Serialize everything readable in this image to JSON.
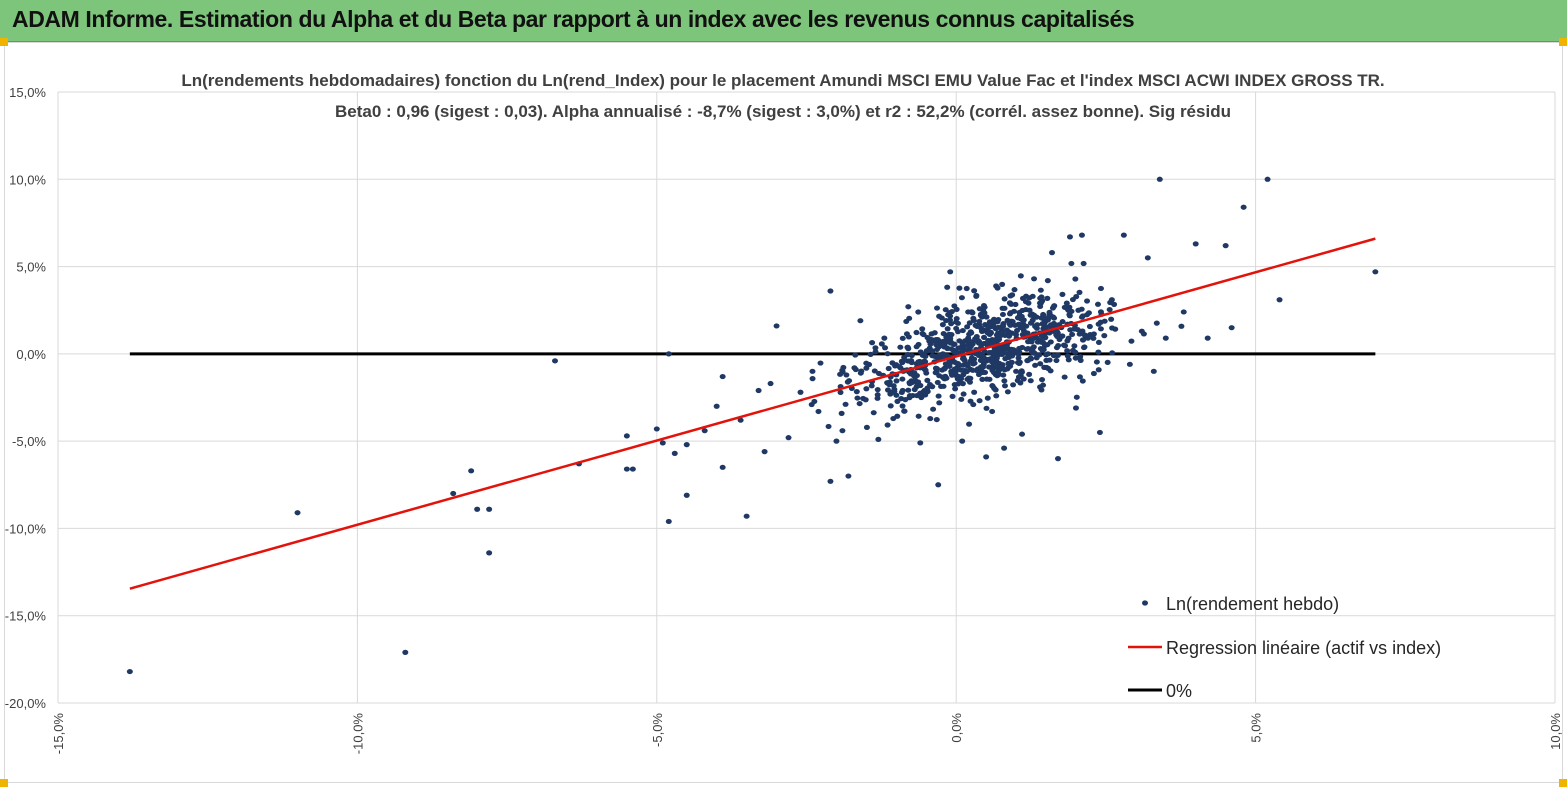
{
  "banner": {
    "title": "ADAM Informe. Estimation du Alpha et du Beta par rapport à un index avec les revenus connus capitalisés",
    "color": "#7dc57b"
  },
  "chart_data": {
    "type": "scatter",
    "title": "Ln(rendements hebdomadaires) fonction du Ln(rend_Index) pour le placement Amundi MSCI EMU Value Fac et l'index MSCI ACWI INDEX GROSS TR.",
    "subtitle": "Beta0 : 0,96 (sigest : 0,03). Alpha annualisé : -8,7% (sigest : 3,0%) et r2 : 52,2% (corrél. assez bonne). Sig résidu",
    "xlabel": "",
    "ylabel": "",
    "xlim": [
      -15,
      10
    ],
    "ylim": [
      -20,
      15
    ],
    "x_ticks": [
      "-15,0%",
      "-10,0%",
      "-5,0%",
      "0,0%",
      "5,0%",
      "10,0%"
    ],
    "y_ticks": [
      "15,0%",
      "10,0%",
      "5,0%",
      "0,0%",
      "-5,0%",
      "-10,0%",
      "-15,0%",
      "-20,0%"
    ],
    "grid": true,
    "legend_position": "bottom-right",
    "series": [
      {
        "name": "Ln(rendement hebdo)",
        "kind": "scatter",
        "color": "#1f3864",
        "points": [
          [
            -13.8,
            -18.2
          ],
          [
            -11.0,
            -9.1
          ],
          [
            -9.2,
            -17.1
          ],
          [
            -8.4,
            -8.0
          ],
          [
            -8.1,
            -6.7
          ],
          [
            -8.0,
            -8.9
          ],
          [
            -7.8,
            -8.9
          ],
          [
            -7.8,
            -11.4
          ],
          [
            -6.7,
            -0.4
          ],
          [
            -6.3,
            -6.3
          ],
          [
            -5.5,
            -4.7
          ],
          [
            -5.5,
            -6.6
          ],
          [
            -5.4,
            -6.6
          ],
          [
            -5.0,
            -4.3
          ],
          [
            -4.9,
            -5.1
          ],
          [
            -4.8,
            -9.6
          ],
          [
            -4.8,
            0.0
          ],
          [
            -4.7,
            -5.7
          ],
          [
            -4.5,
            -5.2
          ],
          [
            -4.5,
            -8.1
          ],
          [
            -4.2,
            -4.4
          ],
          [
            -4.0,
            -3.0
          ],
          [
            -3.9,
            -1.3
          ],
          [
            -3.9,
            -6.5
          ],
          [
            -3.6,
            -3.8
          ],
          [
            -3.5,
            -9.3
          ],
          [
            -3.3,
            -2.1
          ],
          [
            -3.2,
            -5.6
          ],
          [
            -3.1,
            -1.7
          ],
          [
            -3.0,
            1.6
          ],
          [
            -2.8,
            -4.8
          ],
          [
            -2.6,
            -2.2
          ],
          [
            -2.4,
            -1.0
          ],
          [
            -2.3,
            -3.3
          ],
          [
            -2.1,
            -7.3
          ],
          [
            -2.1,
            3.6
          ],
          [
            -2.0,
            -5.0
          ],
          [
            -1.9,
            -4.4
          ],
          [
            -1.8,
            -7.0
          ],
          [
            -1.7,
            -0.8
          ],
          [
            -1.6,
            1.9
          ],
          [
            -1.5,
            -2.0
          ],
          [
            -1.3,
            -4.9
          ],
          [
            -1.2,
            0.9
          ],
          [
            -1.1,
            -2.3
          ],
          [
            -0.9,
            -0.5
          ],
          [
            -0.8,
            2.7
          ],
          [
            -0.6,
            -5.1
          ],
          [
            -0.5,
            -1.1
          ],
          [
            -0.4,
            0.8
          ],
          [
            -0.3,
            -7.5
          ],
          [
            -0.2,
            -1.4
          ],
          [
            -0.1,
            4.7
          ],
          [
            0.1,
            -5.0
          ],
          [
            0.2,
            2.4
          ],
          [
            0.3,
            -2.2
          ],
          [
            0.4,
            0.6
          ],
          [
            0.5,
            -5.9
          ],
          [
            0.6,
            -3.3
          ],
          [
            0.7,
            1.2
          ],
          [
            0.8,
            -5.4
          ],
          [
            0.9,
            2.9
          ],
          [
            1.0,
            -1.0
          ],
          [
            1.1,
            -4.6
          ],
          [
            1.2,
            0.3
          ],
          [
            1.3,
            4.3
          ],
          [
            1.4,
            -1.9
          ],
          [
            1.5,
            1.9
          ],
          [
            1.6,
            5.8
          ],
          [
            1.7,
            -6.0
          ],
          [
            1.8,
            0.5
          ],
          [
            1.9,
            6.7
          ],
          [
            2.0,
            -3.1
          ],
          [
            2.1,
            2.1
          ],
          [
            2.1,
            6.8
          ],
          [
            2.2,
            0.9
          ],
          [
            2.4,
            -4.5
          ],
          [
            2.6,
            3.1
          ],
          [
            2.8,
            6.8
          ],
          [
            2.9,
            -0.6
          ],
          [
            3.1,
            1.3
          ],
          [
            3.2,
            5.5
          ],
          [
            3.3,
            -1.0
          ],
          [
            3.4,
            10.0
          ],
          [
            3.5,
            0.9
          ],
          [
            3.8,
            2.4
          ],
          [
            4.0,
            6.3
          ],
          [
            4.2,
            0.9
          ],
          [
            4.5,
            6.2
          ],
          [
            4.6,
            1.5
          ],
          [
            4.8,
            8.4
          ],
          [
            5.2,
            10.0
          ],
          [
            5.4,
            3.1
          ],
          [
            7.0,
            4.7
          ],
          [
            0.0,
            0.1
          ],
          [
            -0.2,
            0.4
          ],
          [
            0.3,
            -0.3
          ],
          [
            0.5,
            0.6
          ],
          [
            -0.6,
            -0.8
          ],
          [
            0.8,
            0.2
          ],
          [
            1.0,
            1.1
          ],
          [
            -1.0,
            -1.2
          ],
          [
            0.2,
            0.9
          ],
          [
            -0.4,
            -0.1
          ],
          [
            1.2,
            0.7
          ],
          [
            -0.8,
            0.3
          ]
        ]
      },
      {
        "name": "Regression linéaire (actif vs index)",
        "kind": "line",
        "color": "#e3120b",
        "x": [
          -13.8,
          7.0
        ],
        "y": [
          -13.45,
          6.6
        ]
      },
      {
        "name": "0%",
        "kind": "line",
        "color": "#000000",
        "x": [
          -13.8,
          7.0
        ],
        "y": [
          0,
          0
        ]
      }
    ]
  }
}
